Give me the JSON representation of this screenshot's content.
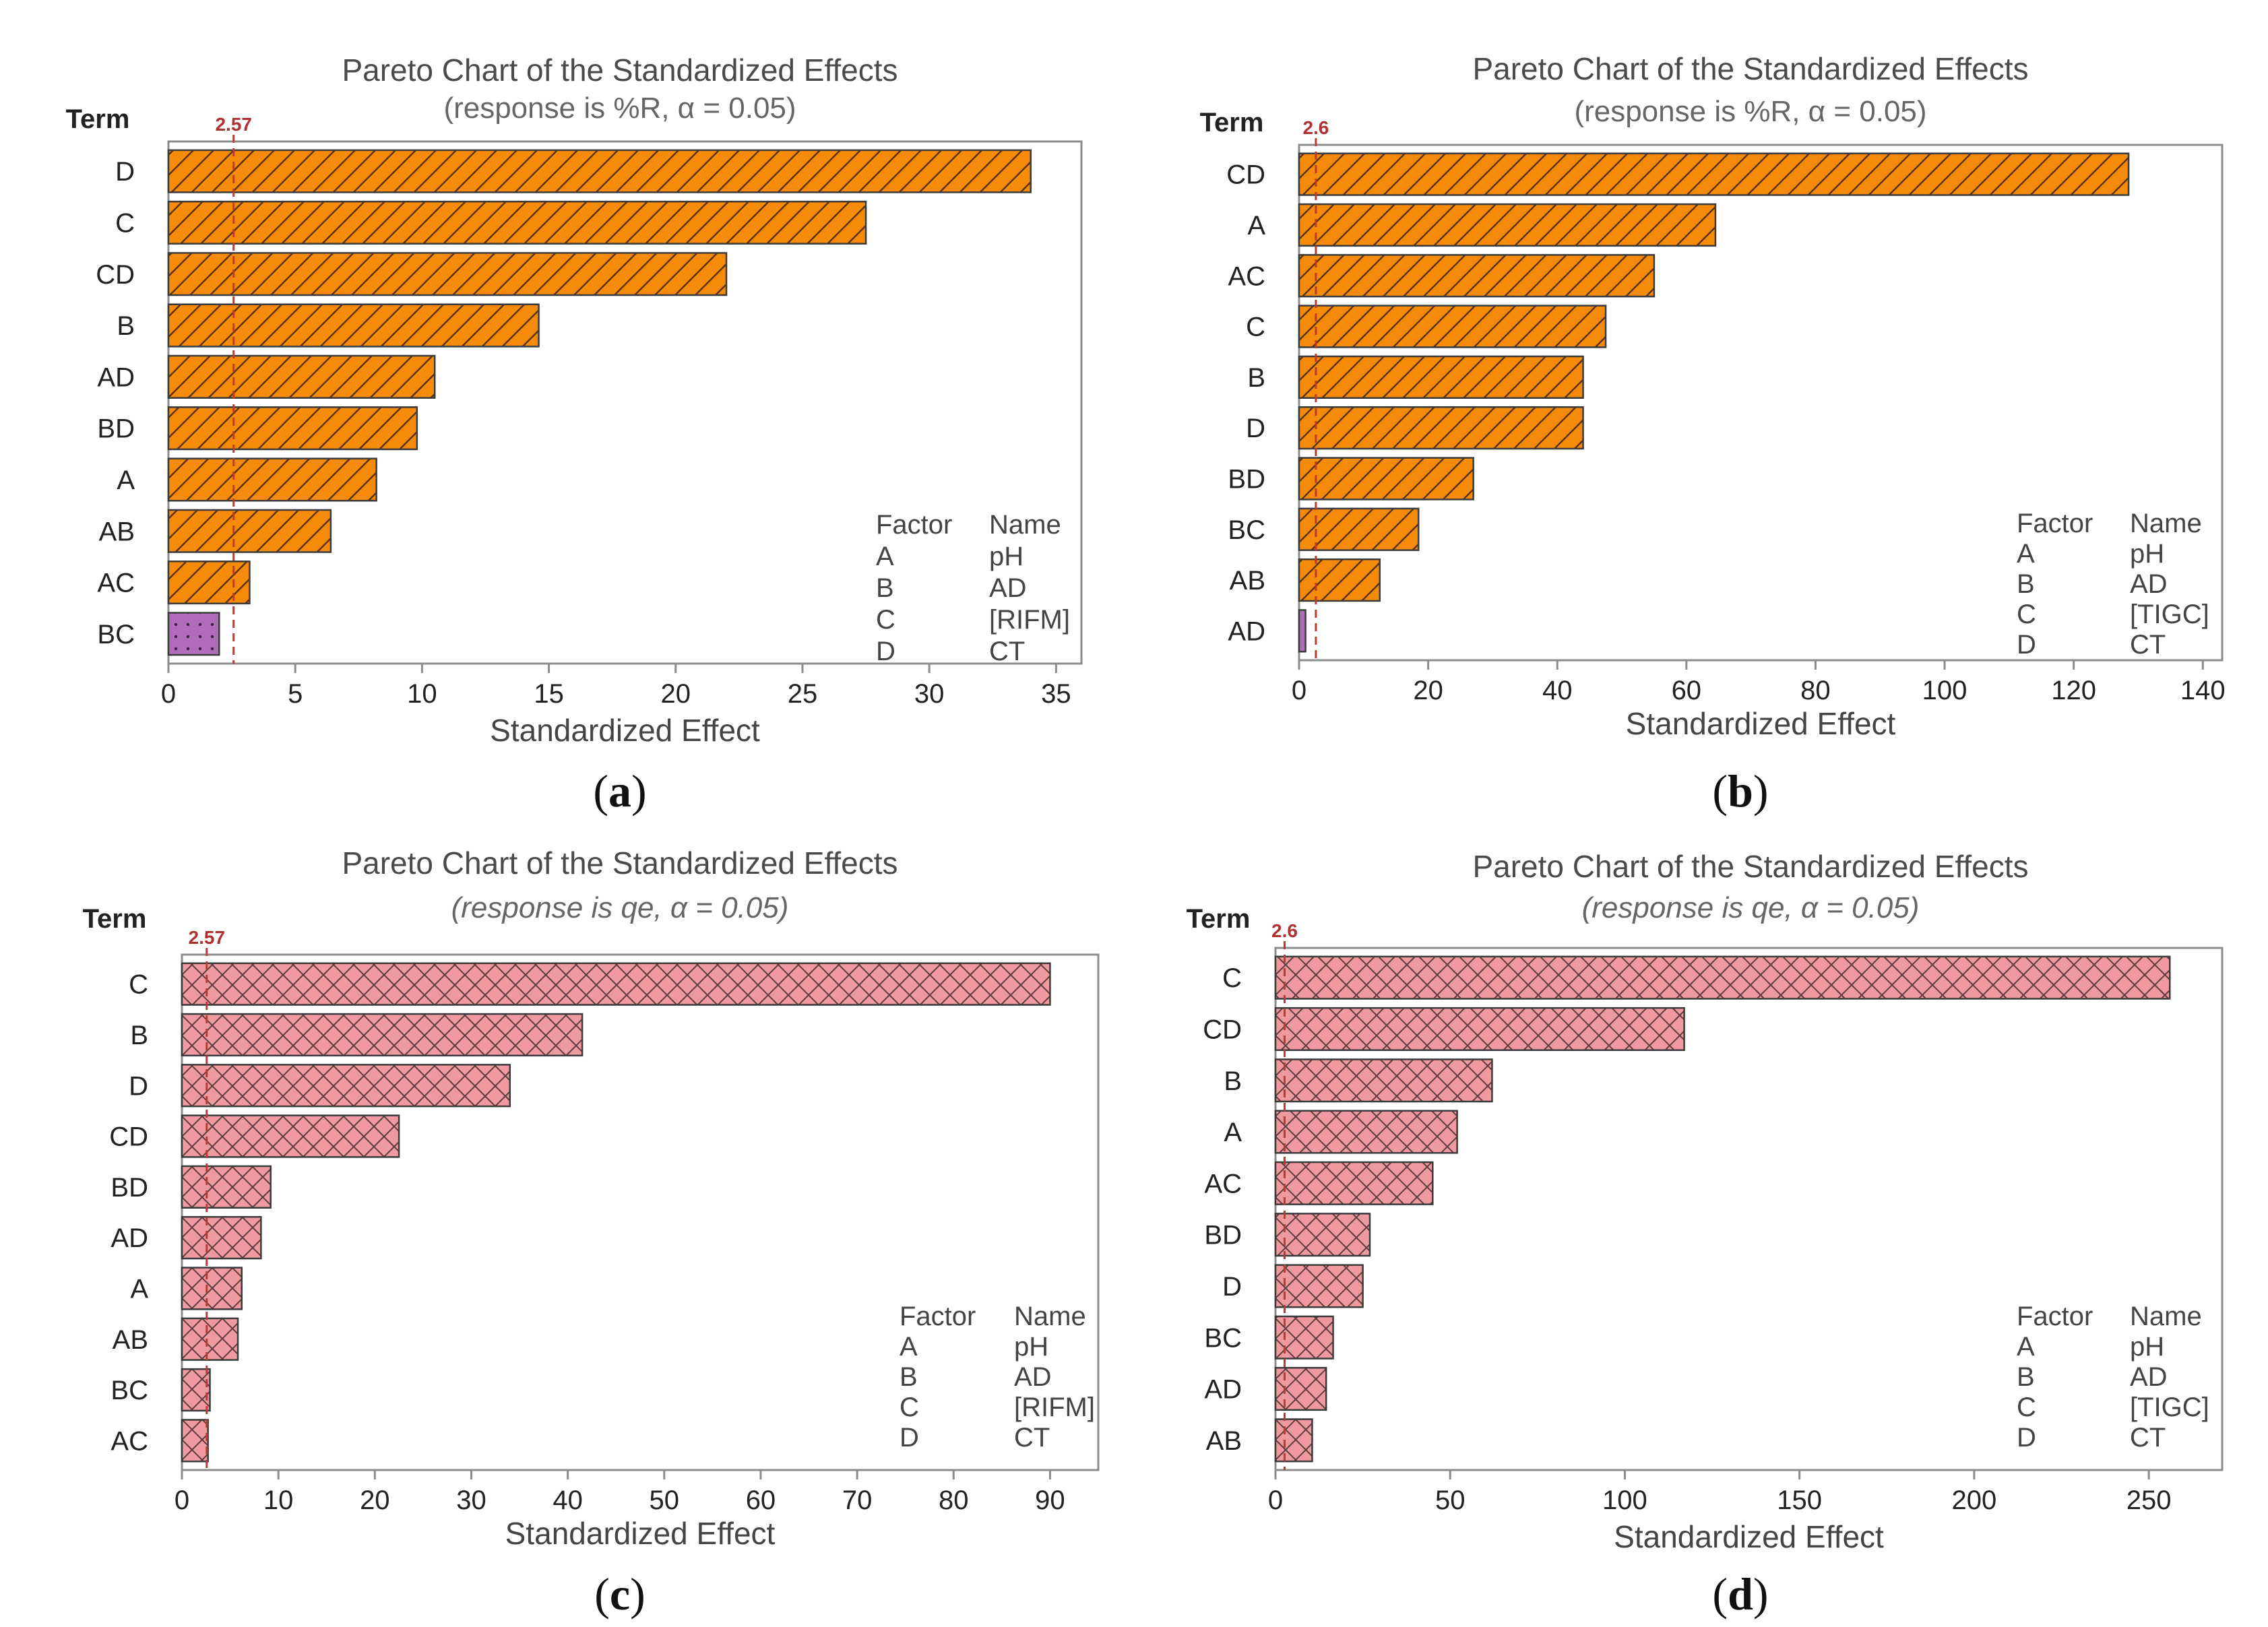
{
  "chart_data": [
    {
      "type": "bar",
      "orientation": "horizontal",
      "title": "Pareto Chart of the Standardized Effects",
      "subtitle": "(response is %R, α = 0.05)",
      "subtitle_italic": false,
      "ylabel": "Term",
      "xlabel": "Standardized Effect",
      "xlim": [
        0,
        36
      ],
      "xticks": [
        0,
        5,
        10,
        15,
        20,
        25,
        30,
        35
      ],
      "reference_line": 2.57,
      "reference_label": "2.57",
      "categories": [
        "D",
        "C",
        "CD",
        "B",
        "AD",
        "BD",
        "A",
        "AB",
        "AC",
        "BC"
      ],
      "values": [
        34.0,
        27.5,
        22.0,
        14.6,
        10.5,
        9.8,
        8.2,
        6.4,
        3.2,
        2.0
      ],
      "significant_color": "#f58a0b",
      "nonsignificant_color": "#b06cb8",
      "legend": {
        "headers": [
          "Factor",
          "Name"
        ],
        "rows": [
          [
            "A",
            "pH"
          ],
          [
            "B",
            "AD"
          ],
          [
            "C",
            "[RIFM]"
          ],
          [
            "D",
            "CT"
          ]
        ]
      },
      "caption_letter": "a"
    },
    {
      "type": "bar",
      "orientation": "horizontal",
      "title": "Pareto Chart of the Standardized Effects",
      "subtitle": "(response is %R, α = 0.05)",
      "subtitle_italic": false,
      "ylabel": "Term",
      "xlabel": "Standardized Effect",
      "xlim": [
        0,
        143
      ],
      "xticks": [
        0,
        20,
        40,
        60,
        80,
        100,
        120,
        140
      ],
      "reference_line": 2.6,
      "reference_label": "2.6",
      "categories": [
        "CD",
        "A",
        "AC",
        "C",
        "B",
        "D",
        "BD",
        "BC",
        "AB",
        "AD"
      ],
      "values": [
        128.5,
        64.5,
        55.0,
        47.5,
        44.0,
        44.0,
        27.0,
        18.5,
        12.5,
        1.0
      ],
      "significant_color": "#f58a0b",
      "nonsignificant_color": "#b06cb8",
      "legend": {
        "headers": [
          "Factor",
          "Name"
        ],
        "rows": [
          [
            "A",
            "pH"
          ],
          [
            "B",
            "AD"
          ],
          [
            "C",
            "[TIGC]"
          ],
          [
            "D",
            "CT"
          ]
        ]
      },
      "caption_letter": "b"
    },
    {
      "type": "bar",
      "orientation": "horizontal",
      "title": "Pareto Chart of the Standardized Effects",
      "subtitle": "(response is qe, α = 0.05)",
      "subtitle_italic": true,
      "ylabel": "Term",
      "xlabel": "Standardized Effect",
      "xlim": [
        0,
        95
      ],
      "xticks": [
        0,
        10,
        20,
        30,
        40,
        50,
        60,
        70,
        80,
        90
      ],
      "reference_line": 2.57,
      "reference_label": "2.57",
      "categories": [
        "C",
        "B",
        "D",
        "CD",
        "BD",
        "AD",
        "A",
        "AB",
        "BC",
        "AC"
      ],
      "values": [
        90.0,
        41.5,
        34.0,
        22.5,
        9.2,
        8.2,
        6.2,
        5.8,
        2.9,
        2.7
      ],
      "significant_color": "#ee9aa0",
      "nonsignificant_color": "#ee9aa0",
      "legend": {
        "headers": [
          "Factor",
          "Name"
        ],
        "rows": [
          [
            "A",
            "pH"
          ],
          [
            "B",
            "AD"
          ],
          [
            "C",
            "[RIFM]"
          ],
          [
            "D",
            "CT"
          ]
        ]
      },
      "caption_letter": "c"
    },
    {
      "type": "bar",
      "orientation": "horizontal",
      "title": "Pareto Chart of the Standardized Effects",
      "subtitle": "(response is qe, α = 0.05)",
      "subtitle_italic": true,
      "ylabel": "Term",
      "xlabel": "Standardized Effect",
      "xlim": [
        0,
        271
      ],
      "xticks": [
        0,
        50,
        100,
        150,
        200,
        250
      ],
      "reference_line": 2.6,
      "reference_label": "2.6",
      "categories": [
        "C",
        "CD",
        "B",
        "A",
        "AC",
        "BD",
        "D",
        "BC",
        "AD",
        "AB"
      ],
      "values": [
        256.0,
        117.0,
        62.0,
        52.0,
        45.0,
        27.0,
        25.0,
        16.5,
        14.5,
        10.5
      ],
      "significant_color": "#ee9aa0",
      "nonsignificant_color": "#ee9aa0",
      "legend": {
        "headers": [
          "Factor",
          "Name"
        ],
        "rows": [
          [
            "A",
            "pH"
          ],
          [
            "B",
            "AD"
          ],
          [
            "C",
            "[TIGC]"
          ],
          [
            "D",
            "CT"
          ]
        ]
      },
      "caption_letter": "d"
    }
  ],
  "captions": [
    {
      "open": "(",
      "letter": "a",
      "close": ")"
    },
    {
      "open": "(",
      "letter": "b",
      "close": ")"
    },
    {
      "open": "(",
      "letter": "c",
      "close": ")"
    },
    {
      "open": "(",
      "letter": "d",
      "close": ")"
    }
  ]
}
